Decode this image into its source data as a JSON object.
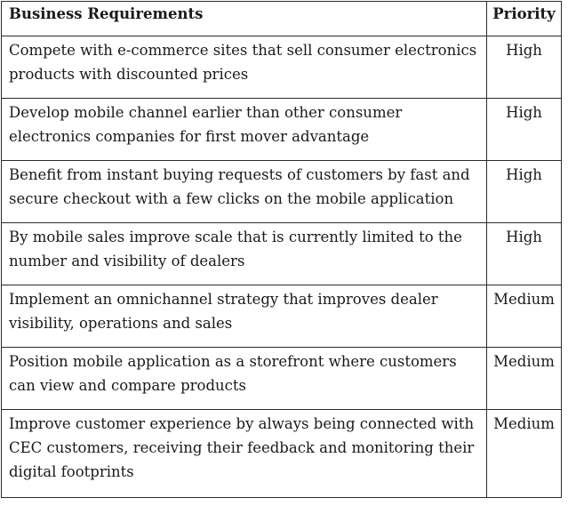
{
  "table": {
    "headers": {
      "requirement": "Business Requirements",
      "priority": "Priority"
    },
    "rows": [
      {
        "requirement": "Compete with e-commerce sites that sell consumer electronics products with discounted prices",
        "priority": "High"
      },
      {
        "requirement": "Develop mobile channel earlier than other consumer electronics companies for first mover advantage",
        "priority": "High"
      },
      {
        "requirement": "Benefit from instant buying requests of customers by  fast and secure checkout with a few clicks on the mobile application",
        "priority": "High"
      },
      {
        "requirement": "By mobile sales improve scale that is currently limited to the number and visibility of dealers",
        "priority": "High"
      },
      {
        "requirement": "Implement an omnichannel strategy that improves dealer visibility, operations and sales",
        "priority": "Medium"
      },
      {
        "requirement": "Position mobile application as a storefront where customers can view and compare products",
        "priority": "Medium"
      },
      {
        "requirement": "Improve customer experience by always being connected with CEC customers, receiving their feedback and monitoring their digital footprints",
        "priority": "Medium"
      }
    ]
  }
}
